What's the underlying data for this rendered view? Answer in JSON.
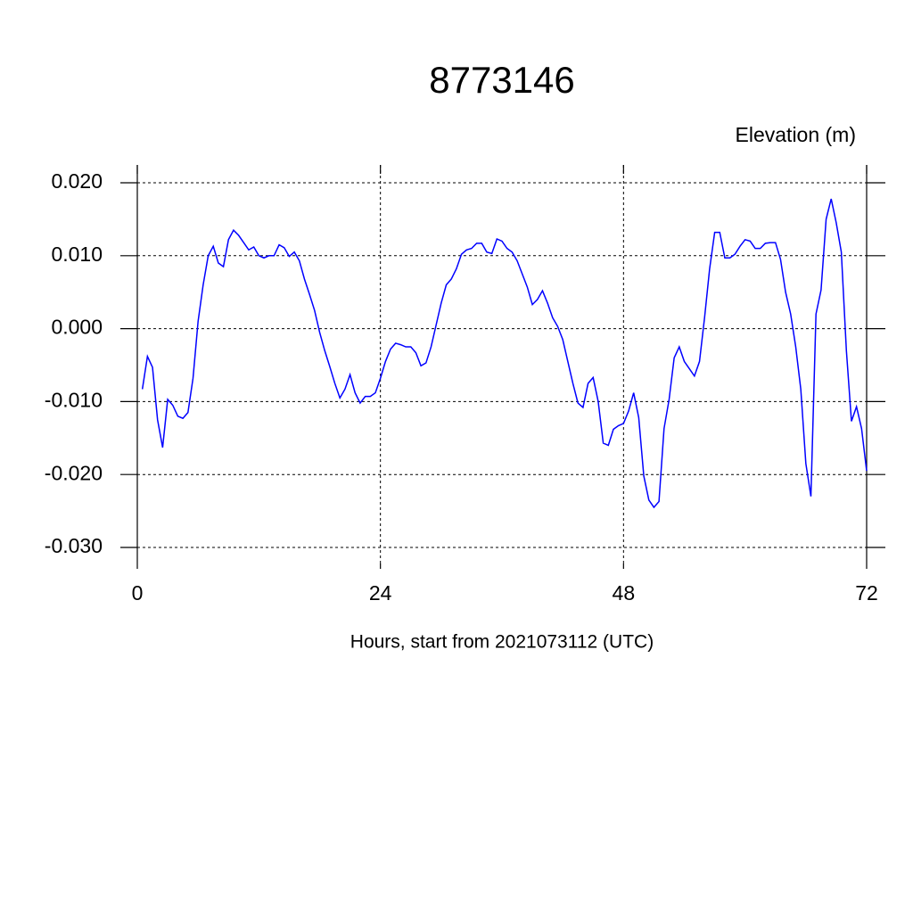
{
  "chart_data": {
    "type": "line",
    "title": "8773146",
    "y_axis_label": "Elevation (m)",
    "x_axis_label": "Hours, start from 2021073112 (UTC)",
    "x": [
      0.5,
      1,
      1.5,
      2,
      2.5,
      3,
      3.5,
      4,
      4.5,
      5,
      5.5,
      6,
      6.5,
      7,
      7.5,
      8,
      8.5,
      9,
      9.5,
      10,
      10.5,
      11,
      11.5,
      12,
      12.5,
      13,
      13.5,
      14,
      14.5,
      15,
      15.5,
      16,
      16.5,
      17,
      17.5,
      18,
      18.5,
      19,
      19.5,
      20,
      20.5,
      21,
      21.5,
      22,
      22.5,
      23,
      23.5,
      24,
      24.5,
      25,
      25.5,
      26,
      26.5,
      27,
      27.5,
      28,
      28.5,
      29,
      29.5,
      30,
      30.5,
      31,
      31.5,
      32,
      32.5,
      33,
      33.5,
      34,
      34.5,
      35,
      35.5,
      36,
      36.5,
      37,
      37.5,
      38,
      38.5,
      39,
      39.5,
      40,
      40.5,
      41,
      41.5,
      42,
      42.5,
      43,
      43.5,
      44,
      44.5,
      45,
      45.5,
      46,
      46.5,
      47,
      47.5,
      48,
      48.5,
      49,
      49.5,
      50,
      50.5,
      51,
      51.5,
      52,
      52.5,
      53,
      53.5,
      54,
      54.5,
      55,
      55.5,
      56,
      56.5,
      57,
      57.5,
      58,
      58.5,
      59,
      59.5,
      60,
      60.5,
      61,
      61.5,
      62,
      62.5,
      63,
      63.5,
      64,
      64.5,
      65,
      65.5,
      66,
      66.5,
      67,
      67.5,
      68,
      68.5,
      69,
      69.5,
      70,
      70.5,
      71,
      71.5,
      72
    ],
    "series": [
      {
        "name": "Elevation",
        "color": "#0000ff",
        "values": [
          -0.0083,
          -0.0038,
          -0.0053,
          -0.0125,
          -0.0163,
          -0.0097,
          -0.0105,
          -0.012,
          -0.0123,
          -0.0115,
          -0.0068,
          0.001,
          0.006,
          0.01,
          0.0113,
          0.009,
          0.0085,
          0.0122,
          0.0135,
          0.0128,
          0.0118,
          0.0108,
          0.0112,
          0.01,
          0.0097,
          0.01,
          0.01,
          0.0115,
          0.0111,
          0.0099,
          0.0105,
          0.0093,
          0.0068,
          0.0047,
          0.0025,
          -0.0005,
          -0.003,
          -0.0052,
          -0.0075,
          -0.0095,
          -0.0083,
          -0.0063,
          -0.0088,
          -0.0102,
          -0.0093,
          -0.0093,
          -0.0088,
          -0.0068,
          -0.0045,
          -0.0028,
          -0.002,
          -0.0022,
          -0.0025,
          -0.0025,
          -0.0033,
          -0.0051,
          -0.0047,
          -0.0025,
          0.0005,
          0.0035,
          0.006,
          0.0068,
          0.0082,
          0.0102,
          0.0108,
          0.011,
          0.0117,
          0.0117,
          0.0105,
          0.0103,
          0.0123,
          0.012,
          0.011,
          0.0105,
          0.0093,
          0.0075,
          0.0057,
          0.0033,
          0.004,
          0.0052,
          0.0035,
          0.0015,
          0.0003,
          -0.0015,
          -0.0045,
          -0.0075,
          -0.0102,
          -0.0108,
          -0.0075,
          -0.0067,
          -0.01,
          -0.0157,
          -0.016,
          -0.0138,
          -0.0133,
          -0.013,
          -0.0113,
          -0.0088,
          -0.0122,
          -0.0202,
          -0.0235,
          -0.0245,
          -0.0237,
          -0.0137,
          -0.0097,
          -0.004,
          -0.0025,
          -0.0045,
          -0.0055,
          -0.0065,
          -0.0045,
          0.0015,
          0.0082,
          0.0132,
          0.0132,
          0.0097,
          0.0097,
          0.0102,
          0.0113,
          0.0122,
          0.012,
          0.011,
          0.011,
          0.0117,
          0.0118,
          0.0118,
          0.0095,
          0.005,
          0.002,
          -0.0025,
          -0.0083,
          -0.0185,
          -0.023,
          0.002,
          0.0053,
          0.015,
          0.0178,
          0.0145,
          0.0105,
          -0.003,
          -0.0127,
          -0.0107,
          -0.0137,
          -0.0195
        ]
      }
    ],
    "xlim": [
      0,
      72
    ],
    "xticks": [
      0,
      24,
      48,
      72
    ],
    "ylim": [
      -0.03,
      0.02
    ],
    "yticks": [
      {
        "value": -0.03,
        "label": "-0.030"
      },
      {
        "value": -0.02,
        "label": "-0.020"
      },
      {
        "value": -0.01,
        "label": "-0.010"
      },
      {
        "value": 0,
        "label": "0.000"
      },
      {
        "value": 0.01,
        "label": "0.010"
      },
      {
        "value": 0.02,
        "label": "0.020"
      }
    ],
    "grid": true
  }
}
